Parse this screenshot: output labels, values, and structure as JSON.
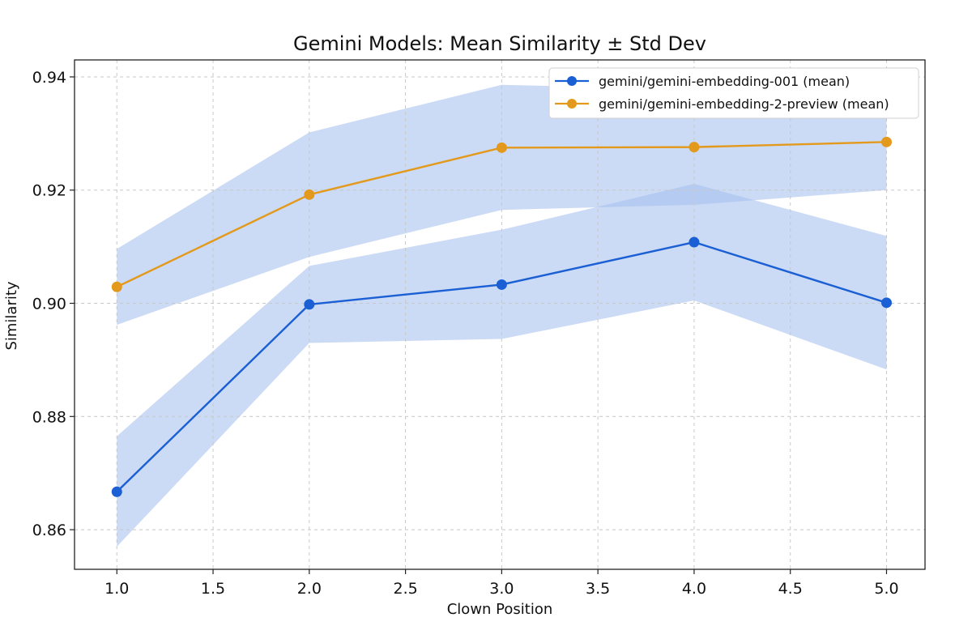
{
  "chart_data": {
    "type": "line",
    "title": "Gemini Models: Mean Similarity ± Std Dev",
    "xlabel": "Clown Position",
    "ylabel": "Similarity",
    "xlim": [
      0.78,
      5.2
    ],
    "ylim": [
      0.853,
      0.943
    ],
    "x_ticks": [
      1.0,
      1.5,
      2.0,
      2.5,
      3.0,
      3.5,
      4.0,
      4.5,
      5.0
    ],
    "x_tick_labels": [
      "1.0",
      "1.5",
      "2.0",
      "2.5",
      "3.0",
      "3.5",
      "4.0",
      "4.5",
      "5.0"
    ],
    "y_ticks": [
      0.86,
      0.88,
      0.9,
      0.92,
      0.94
    ],
    "y_tick_labels": [
      "0.86",
      "0.88",
      "0.90",
      "0.92",
      "0.94"
    ],
    "grid": true,
    "legend_position": "top-right",
    "x": [
      1.0,
      2.0,
      3.0,
      4.0,
      5.0
    ],
    "series": [
      {
        "name": "gemini/gemini-embedding-001 (mean)",
        "color": "#1a5fd4",
        "band_color": "#a9c2ee",
        "values": [
          0.8667,
          0.8998,
          0.9033,
          0.9108,
          0.9001
        ],
        "lower": [
          0.857,
          0.893,
          0.8937,
          0.9005,
          0.8883
        ],
        "upper": [
          0.8765,
          0.9066,
          0.913,
          0.9211,
          0.9119
        ]
      },
      {
        "name": "gemini/gemini-embedding-2-preview (mean)",
        "color": "#e39a1c",
        "band_color": "#a9c2ee",
        "values": [
          0.9029,
          0.9192,
          0.9275,
          0.9276,
          0.9285
        ],
        "lower": [
          0.8962,
          0.9082,
          0.9165,
          0.9174,
          0.92
        ],
        "upper": [
          0.9096,
          0.9302,
          0.9386,
          0.9378,
          0.937
        ]
      }
    ]
  }
}
